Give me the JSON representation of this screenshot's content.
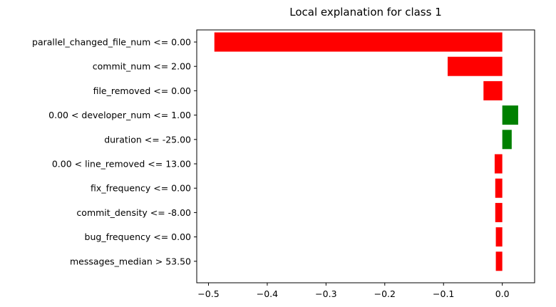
{
  "chart_data": {
    "type": "bar",
    "orientation": "horizontal",
    "title": "Local explanation for class 1",
    "xlabel": "",
    "ylabel": "",
    "xlim": [
      -0.52,
      0.055
    ],
    "xticks": [
      -0.5,
      -0.4,
      -0.3,
      -0.2,
      -0.1,
      0.0
    ],
    "xtick_labels": [
      "−0.5",
      "−0.4",
      "−0.3",
      "−0.2",
      "−0.1",
      "0.0"
    ],
    "grid": false,
    "positive_color": "#008000",
    "negative_color": "#ff0000",
    "categories": [
      "parallel_changed_file_num <= 0.00",
      "commit_num <= 2.00",
      "file_removed <= 0.00",
      "0.00 < developer_num <= 1.00",
      "duration <= -25.00",
      "0.00 < line_removed <= 13.00",
      "fix_frequency <= 0.00",
      "commit_density <= -8.00",
      "bug_frequency <= 0.00",
      "messages_median > 53.50"
    ],
    "values": [
      -0.49,
      -0.093,
      -0.032,
      0.027,
      0.016,
      -0.013,
      -0.012,
      -0.012,
      -0.011,
      -0.011
    ]
  }
}
